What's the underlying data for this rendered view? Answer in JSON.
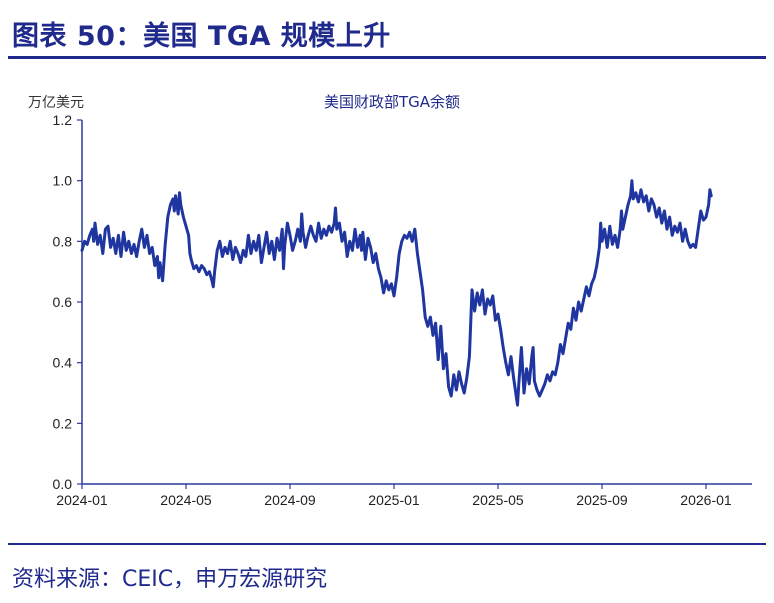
{
  "header": {
    "title": "图表 50：美国 TGA 规模上升"
  },
  "footer": {
    "source": "资料来源：CEIC，申万宏源研究"
  },
  "colors": {
    "accent": "#1F2A8C",
    "series": "#1F35A0"
  },
  "chart_data": {
    "type": "line",
    "title": "美国财政部TGA余额",
    "ylabel": "万亿美元",
    "xlabel": "",
    "ylim": [
      0,
      1.2
    ],
    "xlim": [
      0,
      25
    ],
    "y_ticks": [
      "0.0",
      "0.2",
      "0.4",
      "0.6",
      "0.8",
      "1.0",
      "1.2"
    ],
    "x_tick_labels": [
      "2024-01",
      "2024-05",
      "2024-09",
      "2025-01",
      "2025-05",
      "2025-09",
      "2026-01"
    ],
    "x_tick_months": [
      0,
      4,
      8,
      12,
      16,
      20,
      24
    ],
    "x_unit": "months since 2024-01",
    "series": [
      {
        "name": "美国财政部TGA余额",
        "points": [
          [
            0.0,
            0.77
          ],
          [
            0.1,
            0.8
          ],
          [
            0.2,
            0.79
          ],
          [
            0.3,
            0.82
          ],
          [
            0.4,
            0.84
          ],
          [
            0.45,
            0.8
          ],
          [
            0.5,
            0.86
          ],
          [
            0.6,
            0.79
          ],
          [
            0.7,
            0.82
          ],
          [
            0.8,
            0.76
          ],
          [
            0.9,
            0.84
          ],
          [
            1.0,
            0.85
          ],
          [
            1.1,
            0.78
          ],
          [
            1.2,
            0.81
          ],
          [
            1.3,
            0.76
          ],
          [
            1.4,
            0.82
          ],
          [
            1.5,
            0.75
          ],
          [
            1.6,
            0.83
          ],
          [
            1.7,
            0.77
          ],
          [
            1.8,
            0.8
          ],
          [
            1.9,
            0.76
          ],
          [
            2.0,
            0.79
          ],
          [
            2.1,
            0.75
          ],
          [
            2.2,
            0.8
          ],
          [
            2.3,
            0.84
          ],
          [
            2.4,
            0.78
          ],
          [
            2.5,
            0.82
          ],
          [
            2.6,
            0.76
          ],
          [
            2.7,
            0.78
          ],
          [
            2.8,
            0.72
          ],
          [
            2.9,
            0.75
          ],
          [
            2.95,
            0.68
          ],
          [
            3.0,
            0.73
          ],
          [
            3.1,
            0.67
          ],
          [
            3.2,
            0.79
          ],
          [
            3.3,
            0.88
          ],
          [
            3.4,
            0.92
          ],
          [
            3.5,
            0.94
          ],
          [
            3.55,
            0.9
          ],
          [
            3.6,
            0.95
          ],
          [
            3.7,
            0.89
          ],
          [
            3.75,
            0.96
          ],
          [
            3.8,
            0.92
          ],
          [
            3.9,
            0.88
          ],
          [
            4.0,
            0.85
          ],
          [
            4.1,
            0.82
          ],
          [
            4.15,
            0.76
          ],
          [
            4.2,
            0.74
          ],
          [
            4.3,
            0.71
          ],
          [
            4.4,
            0.72
          ],
          [
            4.5,
            0.7
          ],
          [
            4.6,
            0.72
          ],
          [
            4.7,
            0.71
          ],
          [
            4.8,
            0.69
          ],
          [
            4.9,
            0.7
          ],
          [
            5.0,
            0.67
          ],
          [
            5.05,
            0.65
          ],
          [
            5.1,
            0.7
          ],
          [
            5.2,
            0.77
          ],
          [
            5.3,
            0.8
          ],
          [
            5.4,
            0.75
          ],
          [
            5.5,
            0.78
          ],
          [
            5.6,
            0.76
          ],
          [
            5.7,
            0.8
          ],
          [
            5.8,
            0.74
          ],
          [
            5.9,
            0.78
          ],
          [
            6.0,
            0.76
          ],
          [
            6.1,
            0.73
          ],
          [
            6.2,
            0.77
          ],
          [
            6.3,
            0.75
          ],
          [
            6.4,
            0.82
          ],
          [
            6.5,
            0.76
          ],
          [
            6.6,
            0.8
          ],
          [
            6.7,
            0.77
          ],
          [
            6.8,
            0.82
          ],
          [
            6.9,
            0.73
          ],
          [
            7.0,
            0.78
          ],
          [
            7.1,
            0.83
          ],
          [
            7.2,
            0.76
          ],
          [
            7.3,
            0.8
          ],
          [
            7.4,
            0.74
          ],
          [
            7.5,
            0.81
          ],
          [
            7.6,
            0.77
          ],
          [
            7.7,
            0.84
          ],
          [
            7.75,
            0.71
          ],
          [
            7.8,
            0.79
          ],
          [
            7.9,
            0.86
          ],
          [
            8.0,
            0.82
          ],
          [
            8.1,
            0.77
          ],
          [
            8.2,
            0.8
          ],
          [
            8.3,
            0.84
          ],
          [
            8.4,
            0.8
          ],
          [
            8.45,
            0.89
          ],
          [
            8.5,
            0.83
          ],
          [
            8.6,
            0.78
          ],
          [
            8.7,
            0.82
          ],
          [
            8.8,
            0.85
          ],
          [
            8.9,
            0.82
          ],
          [
            9.0,
            0.8
          ],
          [
            9.1,
            0.86
          ],
          [
            9.2,
            0.81
          ],
          [
            9.3,
            0.84
          ],
          [
            9.4,
            0.82
          ],
          [
            9.5,
            0.85
          ],
          [
            9.6,
            0.83
          ],
          [
            9.7,
            0.86
          ],
          [
            9.75,
            0.91
          ],
          [
            9.8,
            0.84
          ],
          [
            9.9,
            0.86
          ],
          [
            10.0,
            0.8
          ],
          [
            10.1,
            0.83
          ],
          [
            10.2,
            0.75
          ],
          [
            10.3,
            0.8
          ],
          [
            10.4,
            0.77
          ],
          [
            10.5,
            0.84
          ],
          [
            10.6,
            0.78
          ],
          [
            10.7,
            0.82
          ],
          [
            10.75,
            0.77
          ],
          [
            10.8,
            0.83
          ],
          [
            10.9,
            0.74
          ],
          [
            11.0,
            0.81
          ],
          [
            11.1,
            0.78
          ],
          [
            11.2,
            0.73
          ],
          [
            11.3,
            0.76
          ],
          [
            11.4,
            0.71
          ],
          [
            11.5,
            0.68
          ],
          [
            11.6,
            0.63
          ],
          [
            11.7,
            0.67
          ],
          [
            11.8,
            0.64
          ],
          [
            11.9,
            0.66
          ],
          [
            12.0,
            0.62
          ],
          [
            12.1,
            0.68
          ],
          [
            12.2,
            0.76
          ],
          [
            12.3,
            0.8
          ],
          [
            12.4,
            0.82
          ],
          [
            12.5,
            0.81
          ],
          [
            12.6,
            0.83
          ],
          [
            12.7,
            0.8
          ],
          [
            12.8,
            0.84
          ],
          [
            12.9,
            0.76
          ],
          [
            13.0,
            0.7
          ],
          [
            13.1,
            0.64
          ],
          [
            13.2,
            0.55
          ],
          [
            13.3,
            0.52
          ],
          [
            13.4,
            0.55
          ],
          [
            13.5,
            0.49
          ],
          [
            13.6,
            0.53
          ],
          [
            13.7,
            0.41
          ],
          [
            13.8,
            0.52
          ],
          [
            13.9,
            0.38
          ],
          [
            14.0,
            0.43
          ],
          [
            14.1,
            0.32
          ],
          [
            14.2,
            0.29
          ],
          [
            14.3,
            0.36
          ],
          [
            14.4,
            0.31
          ],
          [
            14.5,
            0.37
          ],
          [
            14.6,
            0.33
          ],
          [
            14.7,
            0.3
          ],
          [
            14.8,
            0.35
          ],
          [
            14.9,
            0.42
          ],
          [
            15.0,
            0.64
          ],
          [
            15.1,
            0.57
          ],
          [
            15.2,
            0.63
          ],
          [
            15.3,
            0.59
          ],
          [
            15.4,
            0.64
          ],
          [
            15.5,
            0.56
          ],
          [
            15.6,
            0.61
          ],
          [
            15.7,
            0.59
          ],
          [
            15.8,
            0.62
          ],
          [
            15.9,
            0.54
          ],
          [
            16.0,
            0.56
          ],
          [
            16.1,
            0.51
          ],
          [
            16.2,
            0.45
          ],
          [
            16.3,
            0.4
          ],
          [
            16.4,
            0.36
          ],
          [
            16.5,
            0.42
          ],
          [
            16.6,
            0.35
          ],
          [
            16.7,
            0.29
          ],
          [
            16.75,
            0.26
          ],
          [
            16.8,
            0.33
          ],
          [
            16.9,
            0.45
          ],
          [
            17.0,
            0.3
          ],
          [
            17.1,
            0.38
          ],
          [
            17.2,
            0.33
          ],
          [
            17.3,
            0.42
          ],
          [
            17.35,
            0.45
          ],
          [
            17.4,
            0.34
          ],
          [
            17.5,
            0.31
          ],
          [
            17.6,
            0.29
          ],
          [
            17.7,
            0.31
          ],
          [
            17.8,
            0.33
          ],
          [
            17.9,
            0.36
          ],
          [
            18.0,
            0.34
          ],
          [
            18.1,
            0.37
          ],
          [
            18.2,
            0.36
          ],
          [
            18.3,
            0.4
          ],
          [
            18.4,
            0.46
          ],
          [
            18.5,
            0.43
          ],
          [
            18.6,
            0.48
          ],
          [
            18.7,
            0.53
          ],
          [
            18.8,
            0.51
          ],
          [
            18.9,
            0.58
          ],
          [
            19.0,
            0.54
          ],
          [
            19.1,
            0.6
          ],
          [
            19.2,
            0.57
          ],
          [
            19.3,
            0.61
          ],
          [
            19.4,
            0.65
          ],
          [
            19.5,
            0.62
          ],
          [
            19.6,
            0.66
          ],
          [
            19.7,
            0.68
          ],
          [
            19.8,
            0.72
          ],
          [
            19.9,
            0.78
          ],
          [
            19.95,
            0.86
          ],
          [
            20.0,
            0.8
          ],
          [
            20.1,
            0.84
          ],
          [
            20.2,
            0.78
          ],
          [
            20.3,
            0.85
          ],
          [
            20.4,
            0.79
          ],
          [
            20.5,
            0.82
          ],
          [
            20.6,
            0.78
          ],
          [
            20.7,
            0.84
          ],
          [
            20.75,
            0.9
          ],
          [
            20.8,
            0.84
          ],
          [
            20.9,
            0.88
          ],
          [
            21.0,
            0.92
          ],
          [
            21.1,
            0.95
          ],
          [
            21.15,
            1.0
          ],
          [
            21.2,
            0.94
          ],
          [
            21.3,
            0.96
          ],
          [
            21.4,
            0.93
          ],
          [
            21.5,
            0.97
          ],
          [
            21.6,
            0.93
          ],
          [
            21.7,
            0.95
          ],
          [
            21.8,
            0.9
          ],
          [
            21.9,
            0.94
          ],
          [
            22.0,
            0.92
          ],
          [
            22.1,
            0.88
          ],
          [
            22.2,
            0.91
          ],
          [
            22.3,
            0.86
          ],
          [
            22.4,
            0.9
          ],
          [
            22.5,
            0.84
          ],
          [
            22.6,
            0.88
          ],
          [
            22.7,
            0.82
          ],
          [
            22.8,
            0.85
          ],
          [
            22.9,
            0.83
          ],
          [
            23.0,
            0.86
          ],
          [
            23.1,
            0.8
          ],
          [
            23.2,
            0.84
          ],
          [
            23.3,
            0.8
          ],
          [
            23.4,
            0.78
          ],
          [
            23.5,
            0.79
          ],
          [
            23.6,
            0.78
          ],
          [
            23.7,
            0.84
          ],
          [
            23.8,
            0.9
          ],
          [
            23.9,
            0.87
          ],
          [
            24.0,
            0.88
          ],
          [
            24.1,
            0.92
          ],
          [
            24.15,
            0.97
          ],
          [
            24.2,
            0.95
          ]
        ]
      }
    ]
  }
}
